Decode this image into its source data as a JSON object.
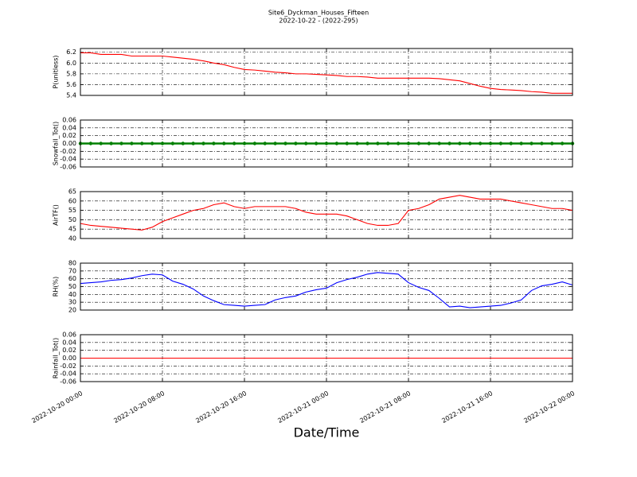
{
  "chart_data": [
    {
      "type": "line",
      "title": "Site6_Dyckman_Houses_Fifteen",
      "subtitle": "2022-10-22 - (2022-295)",
      "ylabel": "P(unitless)",
      "color": "#ff0000",
      "grid": true,
      "x": [
        "2022-10-20 00:00",
        "2022-10-20 01:00",
        "2022-10-20 02:00",
        "2022-10-20 03:00",
        "2022-10-20 04:00",
        "2022-10-20 05:00",
        "2022-10-20 06:00",
        "2022-10-20 07:00",
        "2022-10-20 08:00",
        "2022-10-20 09:00",
        "2022-10-20 10:00",
        "2022-10-20 11:00",
        "2022-10-20 12:00",
        "2022-10-20 13:00",
        "2022-10-20 14:00",
        "2022-10-20 15:00",
        "2022-10-20 16:00",
        "2022-10-20 17:00",
        "2022-10-20 18:00",
        "2022-10-20 19:00",
        "2022-10-20 20:00",
        "2022-10-20 21:00",
        "2022-10-20 22:00",
        "2022-10-20 23:00",
        "2022-10-21 00:00",
        "2022-10-21 01:00",
        "2022-10-21 02:00",
        "2022-10-21 03:00",
        "2022-10-21 04:00",
        "2022-10-21 05:00",
        "2022-10-21 06:00",
        "2022-10-21 07:00",
        "2022-10-21 08:00",
        "2022-10-21 09:00",
        "2022-10-21 10:00",
        "2022-10-21 11:00",
        "2022-10-21 12:00",
        "2022-10-21 13:00",
        "2022-10-21 14:00",
        "2022-10-21 15:00",
        "2022-10-21 16:00",
        "2022-10-21 17:00",
        "2022-10-21 18:00",
        "2022-10-21 19:00",
        "2022-10-21 20:00",
        "2022-10-21 21:00",
        "2022-10-21 22:00",
        "2022-10-21 23:00",
        "2022-10-22 00:00"
      ],
      "values": [
        6.19,
        6.19,
        6.16,
        6.16,
        6.16,
        6.13,
        6.13,
        6.13,
        6.13,
        6.11,
        6.09,
        6.07,
        6.04,
        6.0,
        5.97,
        5.92,
        5.88,
        5.87,
        5.85,
        5.83,
        5.82,
        5.8,
        5.8,
        5.79,
        5.78,
        5.77,
        5.75,
        5.75,
        5.74,
        5.72,
        5.72,
        5.72,
        5.72,
        5.72,
        5.72,
        5.71,
        5.69,
        5.67,
        5.62,
        5.57,
        5.53,
        5.51,
        5.5,
        5.49,
        5.47,
        5.46,
        5.44,
        5.44,
        5.44
      ],
      "xlim": [
        "2022-10-20 00:00",
        "2022-10-22 00:00"
      ],
      "xticks": [
        "2022-10-20 00:00",
        "2022-10-20 08:00",
        "2022-10-20 16:00",
        "2022-10-21 00:00",
        "2022-10-21 08:00",
        "2022-10-21 16:00",
        "2022-10-22 00:00"
      ],
      "ylim": [
        5.4,
        6.27
      ],
      "yticks": [
        5.4,
        5.6,
        5.8,
        {
          "value": 6,
          "label": "6.0"
        },
        6.2
      ]
    },
    {
      "type": "line",
      "marker": true,
      "ylabel": "Snowfall_Tot()",
      "color": "#008000",
      "grid": true,
      "x": [
        "2022-10-20 00:00",
        "2022-10-20 01:00",
        "2022-10-20 02:00",
        "2022-10-20 03:00",
        "2022-10-20 04:00",
        "2022-10-20 05:00",
        "2022-10-20 06:00",
        "2022-10-20 07:00",
        "2022-10-20 08:00",
        "2022-10-20 09:00",
        "2022-10-20 10:00",
        "2022-10-20 11:00",
        "2022-10-20 12:00",
        "2022-10-20 13:00",
        "2022-10-20 14:00",
        "2022-10-20 15:00",
        "2022-10-20 16:00",
        "2022-10-20 17:00",
        "2022-10-20 18:00",
        "2022-10-20 19:00",
        "2022-10-20 20:00",
        "2022-10-20 21:00",
        "2022-10-20 22:00",
        "2022-10-20 23:00",
        "2022-10-21 00:00",
        "2022-10-21 01:00",
        "2022-10-21 02:00",
        "2022-10-21 03:00",
        "2022-10-21 04:00",
        "2022-10-21 05:00",
        "2022-10-21 06:00",
        "2022-10-21 07:00",
        "2022-10-21 08:00",
        "2022-10-21 09:00",
        "2022-10-21 10:00",
        "2022-10-21 11:00",
        "2022-10-21 12:00",
        "2022-10-21 13:00",
        "2022-10-21 14:00",
        "2022-10-21 15:00",
        "2022-10-21 16:00",
        "2022-10-21 17:00",
        "2022-10-21 18:00",
        "2022-10-21 19:00",
        "2022-10-21 20:00",
        "2022-10-21 21:00",
        "2022-10-21 22:00",
        "2022-10-21 23:00",
        "2022-10-22 00:00"
      ],
      "values": [
        0,
        0,
        0,
        0,
        0,
        0,
        0,
        0,
        0,
        0,
        0,
        0,
        0,
        0,
        0,
        0,
        0,
        0,
        0,
        0,
        0,
        0,
        0,
        0,
        0,
        0,
        0,
        0,
        0,
        0,
        0,
        0,
        0,
        0,
        0,
        0,
        0,
        0,
        0,
        0,
        0,
        0,
        0,
        0,
        0,
        0,
        0,
        0,
        0
      ],
      "xlim": [
        "2022-10-20 00:00",
        "2022-10-22 00:00"
      ],
      "xticks": [
        "2022-10-20 00:00",
        "2022-10-20 08:00",
        "2022-10-20 16:00",
        "2022-10-21 00:00",
        "2022-10-21 08:00",
        "2022-10-21 16:00",
        "2022-10-22 00:00"
      ],
      "ylim": [
        -0.06,
        0.06
      ],
      "yticks": [
        -0.06,
        -0.04,
        -0.02,
        {
          "value": 0,
          "label": "0.00"
        },
        0.02,
        0.04,
        0.06
      ]
    },
    {
      "type": "line",
      "ylabel": "AirTF()",
      "color": "#ff0000",
      "grid": true,
      "x": [
        "2022-10-20 00:00",
        "2022-10-20 01:00",
        "2022-10-20 02:00",
        "2022-10-20 03:00",
        "2022-10-20 04:00",
        "2022-10-20 05:00",
        "2022-10-20 06:00",
        "2022-10-20 07:00",
        "2022-10-20 08:00",
        "2022-10-20 09:00",
        "2022-10-20 10:00",
        "2022-10-20 11:00",
        "2022-10-20 12:00",
        "2022-10-20 13:00",
        "2022-10-20 14:00",
        "2022-10-20 15:00",
        "2022-10-20 16:00",
        "2022-10-20 17:00",
        "2022-10-20 18:00",
        "2022-10-20 19:00",
        "2022-10-20 20:00",
        "2022-10-20 21:00",
        "2022-10-20 22:00",
        "2022-10-20 23:00",
        "2022-10-21 00:00",
        "2022-10-21 01:00",
        "2022-10-21 02:00",
        "2022-10-21 03:00",
        "2022-10-21 04:00",
        "2022-10-21 05:00",
        "2022-10-21 06:00",
        "2022-10-21 07:00",
        "2022-10-21 08:00",
        "2022-10-21 09:00",
        "2022-10-21 10:00",
        "2022-10-21 11:00",
        "2022-10-21 12:00",
        "2022-10-21 13:00",
        "2022-10-21 14:00",
        "2022-10-21 15:00",
        "2022-10-21 16:00",
        "2022-10-21 17:00",
        "2022-10-21 18:00",
        "2022-10-21 19:00",
        "2022-10-21 20:00",
        "2022-10-21 21:00",
        "2022-10-21 22:00",
        "2022-10-21 23:00",
        "2022-10-22 00:00"
      ],
      "values": [
        48,
        47,
        46.5,
        46,
        45.5,
        45,
        44.5,
        46,
        49,
        51,
        53,
        55,
        56,
        58,
        59,
        57,
        56,
        57,
        57,
        57,
        57,
        56,
        54,
        53,
        53,
        53,
        52,
        50,
        48,
        47,
        47,
        48,
        55,
        56,
        58,
        61,
        62,
        63,
        62,
        61,
        61,
        61,
        60,
        59,
        58,
        57,
        56,
        56,
        55
      ],
      "xlim": [
        "2022-10-20 00:00",
        "2022-10-22 00:00"
      ],
      "xticks": [
        "2022-10-20 00:00",
        "2022-10-20 08:00",
        "2022-10-20 16:00",
        "2022-10-21 00:00",
        "2022-10-21 08:00",
        "2022-10-21 16:00",
        "2022-10-22 00:00"
      ],
      "ylim": [
        40,
        65
      ],
      "yticks": [
        40,
        45,
        50,
        55,
        60,
        65
      ]
    },
    {
      "type": "line",
      "ylabel": "RH(%)",
      "color": "#0000ff",
      "grid": true,
      "x": [
        "2022-10-20 00:00",
        "2022-10-20 01:00",
        "2022-10-20 02:00",
        "2022-10-20 03:00",
        "2022-10-20 04:00",
        "2022-10-20 05:00",
        "2022-10-20 06:00",
        "2022-10-20 07:00",
        "2022-10-20 08:00",
        "2022-10-20 09:00",
        "2022-10-20 10:00",
        "2022-10-20 11:00",
        "2022-10-20 12:00",
        "2022-10-20 13:00",
        "2022-10-20 14:00",
        "2022-10-20 15:00",
        "2022-10-20 16:00",
        "2022-10-20 17:00",
        "2022-10-20 18:00",
        "2022-10-20 19:00",
        "2022-10-20 20:00",
        "2022-10-20 21:00",
        "2022-10-20 22:00",
        "2022-10-20 23:00",
        "2022-10-21 00:00",
        "2022-10-21 01:00",
        "2022-10-21 02:00",
        "2022-10-21 03:00",
        "2022-10-21 04:00",
        "2022-10-21 05:00",
        "2022-10-21 06:00",
        "2022-10-21 07:00",
        "2022-10-21 08:00",
        "2022-10-21 09:00",
        "2022-10-21 10:00",
        "2022-10-21 11:00",
        "2022-10-21 12:00",
        "2022-10-21 13:00",
        "2022-10-21 14:00",
        "2022-10-21 15:00",
        "2022-10-21 16:00",
        "2022-10-21 17:00",
        "2022-10-21 18:00",
        "2022-10-21 19:00",
        "2022-10-21 20:00",
        "2022-10-21 21:00",
        "2022-10-21 22:00",
        "2022-10-21 23:00",
        "2022-10-22 00:00"
      ],
      "values": [
        54,
        55,
        56,
        58,
        59,
        61,
        64,
        66,
        65,
        57,
        53,
        47,
        38,
        32,
        27,
        26,
        25,
        26,
        27,
        33,
        36,
        38,
        43,
        46,
        48,
        55,
        59,
        62,
        66,
        68,
        67,
        66,
        55,
        49,
        45,
        35,
        24,
        25,
        23,
        24,
        25,
        26,
        29,
        33,
        45,
        51,
        53,
        56,
        52
      ],
      "xlim": [
        "2022-10-20 00:00",
        "2022-10-22 00:00"
      ],
      "xticks": [
        "2022-10-20 00:00",
        "2022-10-20 08:00",
        "2022-10-20 16:00",
        "2022-10-21 00:00",
        "2022-10-21 08:00",
        "2022-10-21 16:00",
        "2022-10-22 00:00"
      ],
      "ylim": [
        20,
        80
      ],
      "yticks": [
        20,
        30,
        40,
        50,
        60,
        70,
        80
      ]
    },
    {
      "type": "line",
      "ylabel": "Rainfall_Tot()",
      "xlabel": "Date/Time",
      "color": "#ff0000",
      "grid": true,
      "x": [
        "2022-10-20 00:00",
        "2022-10-20 01:00",
        "2022-10-20 02:00",
        "2022-10-20 03:00",
        "2022-10-20 04:00",
        "2022-10-20 05:00",
        "2022-10-20 06:00",
        "2022-10-20 07:00",
        "2022-10-20 08:00",
        "2022-10-20 09:00",
        "2022-10-20 10:00",
        "2022-10-20 11:00",
        "2022-10-20 12:00",
        "2022-10-20 13:00",
        "2022-10-20 14:00",
        "2022-10-20 15:00",
        "2022-10-20 16:00",
        "2022-10-20 17:00",
        "2022-10-20 18:00",
        "2022-10-20 19:00",
        "2022-10-20 20:00",
        "2022-10-20 21:00",
        "2022-10-20 22:00",
        "2022-10-20 23:00",
        "2022-10-21 00:00",
        "2022-10-21 01:00",
        "2022-10-21 02:00",
        "2022-10-21 03:00",
        "2022-10-21 04:00",
        "2022-10-21 05:00",
        "2022-10-21 06:00",
        "2022-10-21 07:00",
        "2022-10-21 08:00",
        "2022-10-21 09:00",
        "2022-10-21 10:00",
        "2022-10-21 11:00",
        "2022-10-21 12:00",
        "2022-10-21 13:00",
        "2022-10-21 14:00",
        "2022-10-21 15:00",
        "2022-10-21 16:00",
        "2022-10-21 17:00",
        "2022-10-21 18:00",
        "2022-10-21 19:00",
        "2022-10-21 20:00",
        "2022-10-21 21:00",
        "2022-10-21 22:00",
        "2022-10-21 23:00",
        "2022-10-22 00:00"
      ],
      "values": [
        0,
        0,
        0,
        0,
        0,
        0,
        0,
        0,
        0,
        0,
        0,
        0,
        0,
        0,
        0,
        0,
        0,
        0,
        0,
        0,
        0,
        0,
        0,
        0,
        0,
        0,
        0,
        0,
        0,
        0,
        0,
        0,
        0,
        0,
        0,
        0,
        0,
        0,
        0,
        0,
        0,
        0,
        0,
        0,
        0,
        0,
        0,
        0,
        0
      ],
      "xlim": [
        "2022-10-20 00:00",
        "2022-10-22 00:00"
      ],
      "xticks": [
        "2022-10-20 00:00",
        "2022-10-20 08:00",
        "2022-10-20 16:00",
        "2022-10-21 00:00",
        "2022-10-21 08:00",
        "2022-10-21 16:00",
        "2022-10-22 00:00"
      ],
      "ylim": [
        -0.06,
        0.06
      ],
      "yticks": [
        -0.06,
        -0.04,
        -0.02,
        {
          "value": 0,
          "label": "0.00"
        },
        0.02,
        0.04,
        0.06
      ]
    }
  ]
}
